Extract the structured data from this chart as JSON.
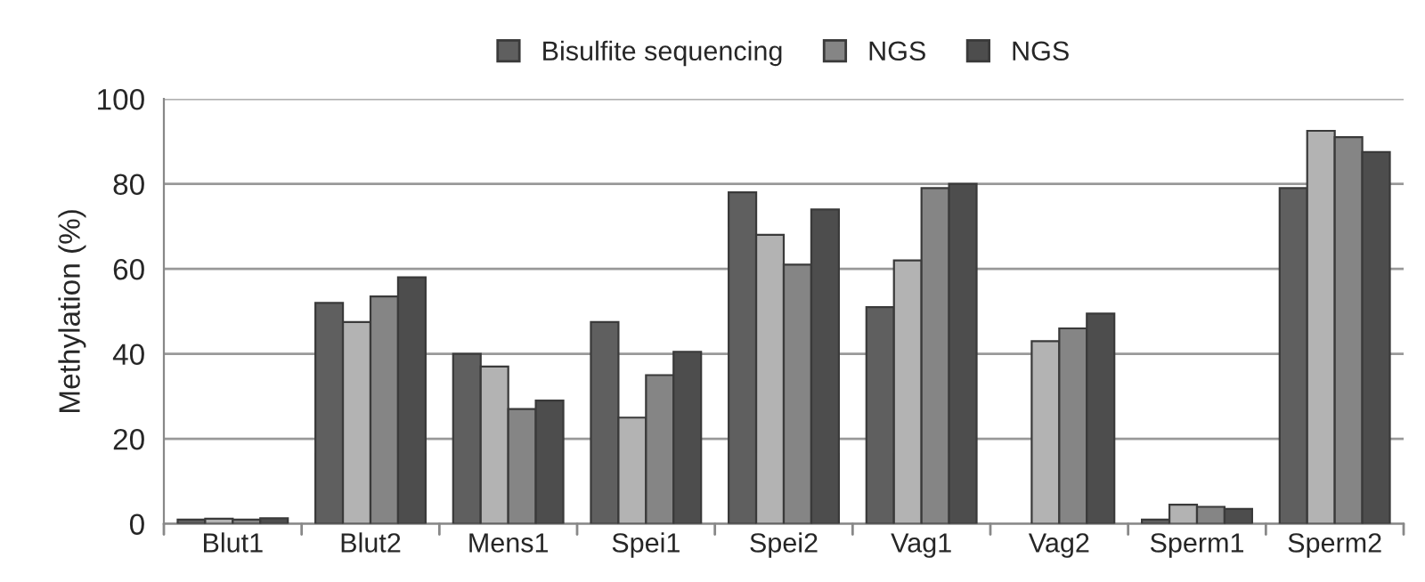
{
  "chart_data": {
    "type": "bar",
    "ylabel": "Methylation (%)",
    "categories": [
      "Blut1",
      "Blut2",
      "Mens1",
      "Spei1",
      "Spei2",
      "Vag1",
      "Vag2",
      "Sperm1",
      "Sperm2"
    ],
    "series": [
      {
        "name": "Bisulfite sequencing",
        "color": "#5f5f5f",
        "values": [
          1,
          52,
          40,
          47.5,
          78,
          51,
          null,
          1,
          79
        ]
      },
      {
        "color": "#b3b3b3",
        "values": [
          1.2,
          47.5,
          37,
          25,
          68,
          62,
          43,
          4.5,
          92.5
        ]
      },
      {
        "name": "NGS",
        "color": "#858585",
        "values": [
          1,
          53.5,
          27,
          35,
          61,
          79,
          46,
          4,
          91
        ]
      },
      {
        "name": "NGS",
        "color": "#4d4d4d",
        "values": [
          1.3,
          58,
          29,
          40.5,
          74,
          80,
          49.5,
          3.5,
          87.5
        ]
      }
    ],
    "ylim": [
      0,
      100
    ],
    "yticks": [
      0,
      20,
      40,
      60,
      80,
      100
    ],
    "grid": "y",
    "legend": "top"
  }
}
